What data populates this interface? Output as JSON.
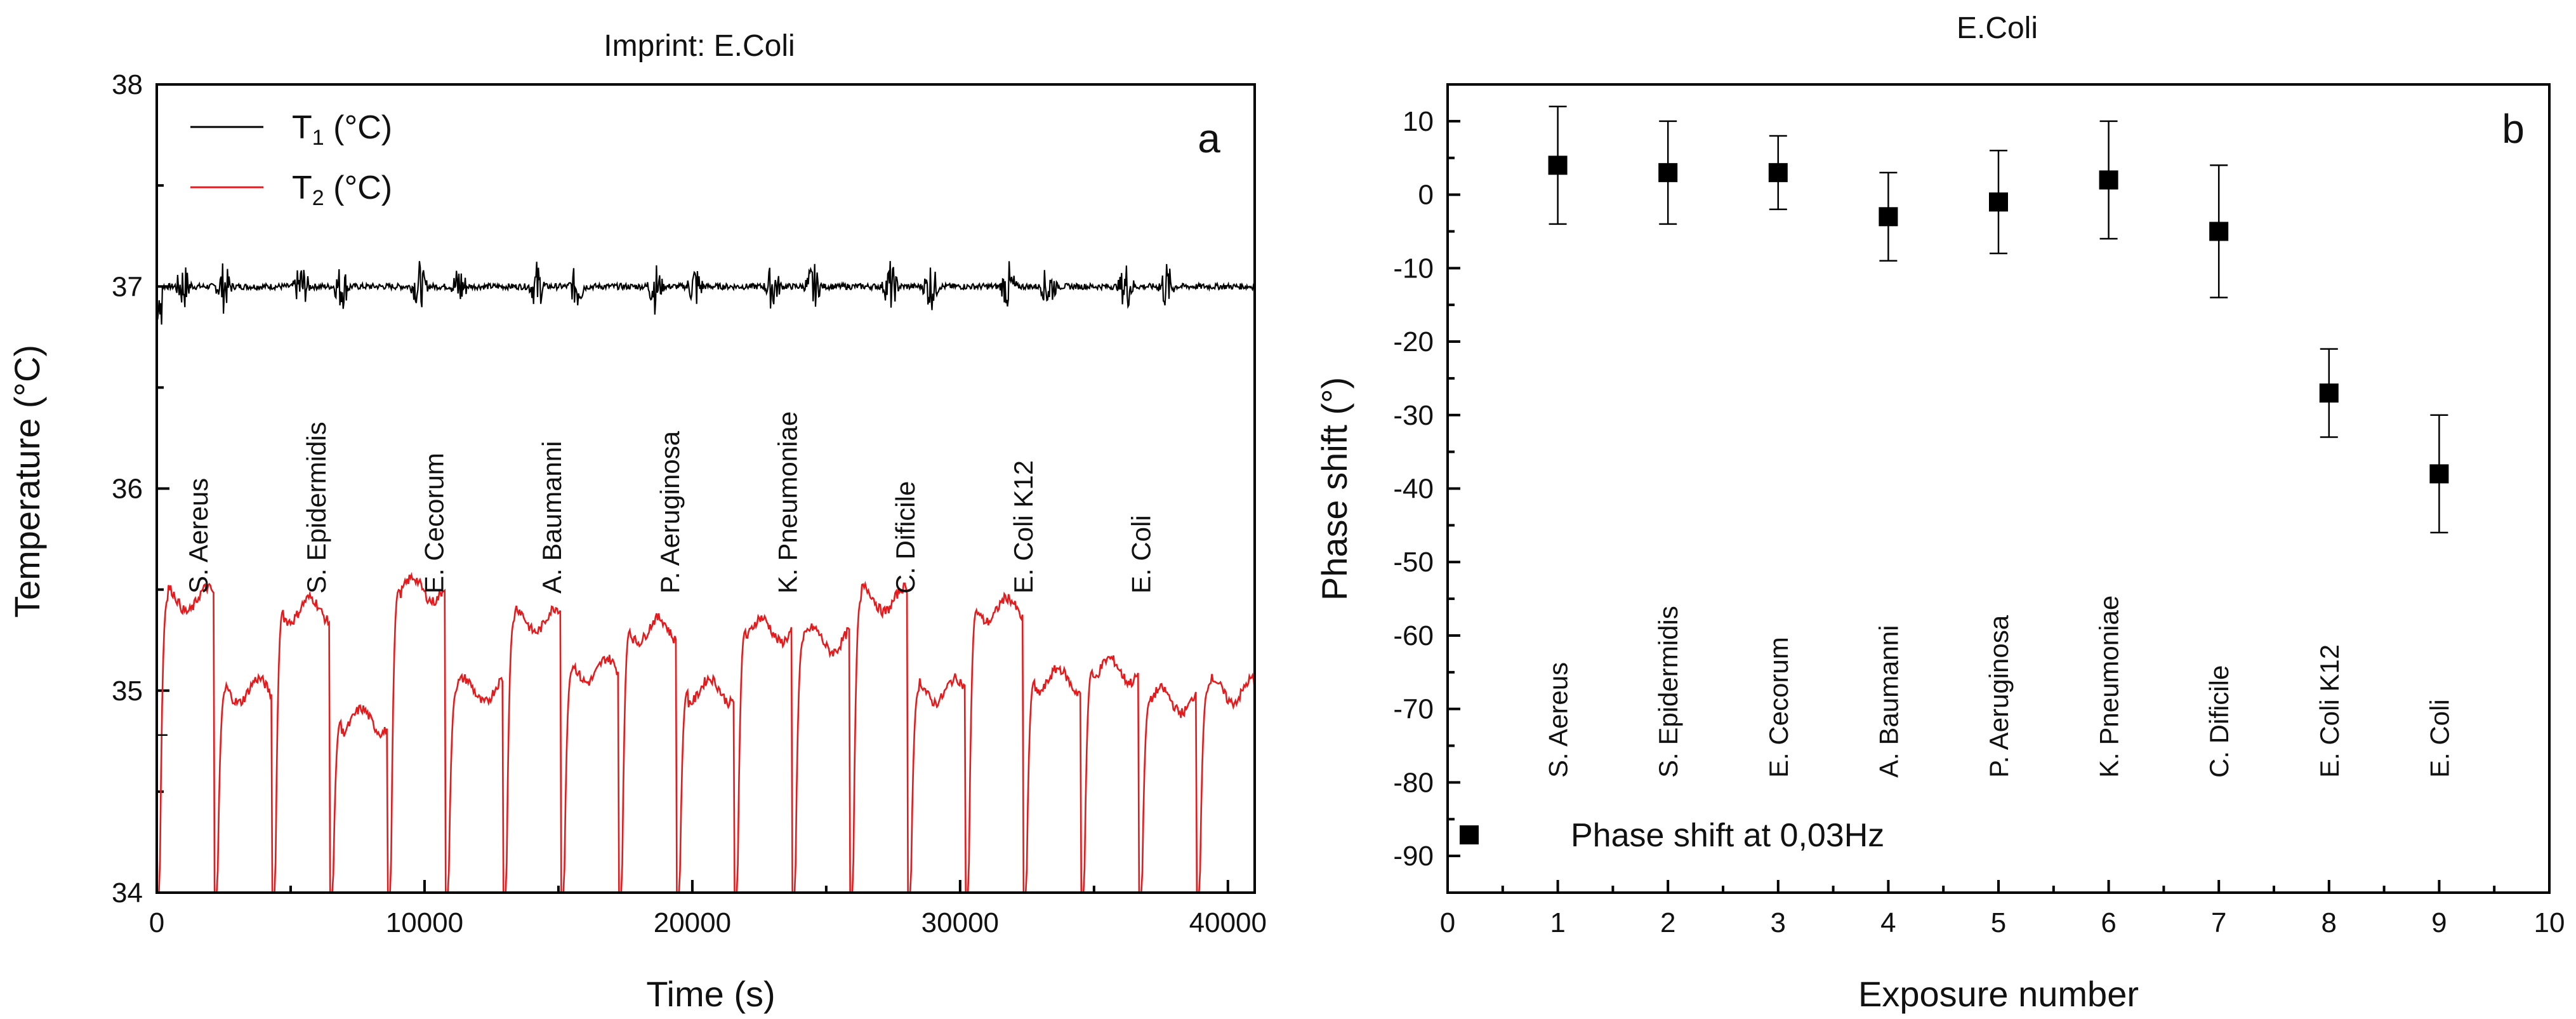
{
  "chart_data": [
    {
      "type": "line",
      "panel_label": "a",
      "title": "Imprint: E.Coli",
      "xlabel": "Time (s)",
      "ylabel": "Temperature (°C)",
      "xlim": [
        0,
        41000
      ],
      "ylim": [
        34,
        38
      ],
      "xticks": [
        0,
        10000,
        20000,
        30000,
        40000
      ],
      "yticks": [
        34,
        35,
        36,
        37,
        38
      ],
      "legend_position": "top-left",
      "series": [
        {
          "name": "T1",
          "label_main": "T",
          "label_sub": "1",
          "label_unit": " (°C)",
          "color": "#000000",
          "baseline": 37.0
        },
        {
          "name": "T2",
          "label_main": "T",
          "label_sub": "2",
          "label_unit": " (°C)",
          "color": "#e41a1c"
        }
      ],
      "t2_plateaus": [
        35.45,
        35.0,
        35.4,
        34.85,
        35.5,
        35.0,
        35.35,
        35.1,
        35.3,
        35.0,
        35.3,
        35.25,
        35.45,
        35.0,
        35.4,
        35.05,
        35.1,
        34.95,
        35.0
      ],
      "exposures": [
        {
          "name": "S. Aereus",
          "t": 1900
        },
        {
          "name": "S. Epidermidis",
          "t": 6300
        },
        {
          "name": "E. Cecorum",
          "t": 10700
        },
        {
          "name": "A. Baumanni",
          "t": 15100
        },
        {
          "name": "P. Aeruginosa",
          "t": 19500
        },
        {
          "name": "K. Pneumoniae",
          "t": 23900
        },
        {
          "name": "C. Dificile",
          "t": 28300
        },
        {
          "name": "E. Coli K12",
          "t": 32700
        },
        {
          "name": "E. Coli",
          "t": 37100
        }
      ]
    },
    {
      "type": "scatter",
      "panel_label": "b",
      "title": "E.Coli",
      "xlabel": "Exposure number",
      "ylabel": "Phase shift (°)",
      "xlim": [
        0,
        10
      ],
      "ylim": [
        -95,
        15
      ],
      "xticks": [
        0,
        1,
        2,
        3,
        4,
        5,
        6,
        7,
        8,
        9,
        10
      ],
      "yticks": [
        10,
        0,
        -10,
        -20,
        -30,
        -40,
        -50,
        -60,
        -70,
        -80,
        -90
      ],
      "legend": "Phase shift at 0,03Hz",
      "legend_position": "bottom-left",
      "points": [
        {
          "x": 1,
          "y": 4,
          "err_low": -4,
          "err_high": 12
        },
        {
          "x": 2,
          "y": 3,
          "err_low": -4,
          "err_high": 10
        },
        {
          "x": 3,
          "y": 3,
          "err_low": -2,
          "err_high": 8
        },
        {
          "x": 4,
          "y": -3,
          "err_low": -9,
          "err_high": 3
        },
        {
          "x": 5,
          "y": -1,
          "err_low": -8,
          "err_high": 6
        },
        {
          "x": 6,
          "y": 2,
          "err_low": -6,
          "err_high": 10
        },
        {
          "x": 7,
          "y": -5,
          "err_low": -14,
          "err_high": 4
        },
        {
          "x": 8,
          "y": -27,
          "err_low": -33,
          "err_high": -21
        },
        {
          "x": 9,
          "y": -38,
          "err_low": -46,
          "err_high": -30
        }
      ],
      "category_labels": [
        "S. Aereus",
        "S. Epidermidis",
        "E. Cecorum",
        "A. Baumanni",
        "P. Aeruginosa",
        "K. Pneumoniae",
        "C. Dificile",
        "E. Coli K12",
        "E. Coli"
      ]
    }
  ]
}
